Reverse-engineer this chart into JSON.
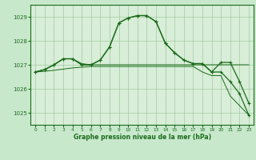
{
  "background_color": "#c8e8cc",
  "plot_bg_color": "#d8eed8",
  "grid_color": "#a0c8a0",
  "line_color": "#1a6b1a",
  "title": "Graphe pression niveau de la mer (hPa)",
  "xlim": [
    -0.5,
    23.5
  ],
  "ylim": [
    1024.5,
    1029.5
  ],
  "yticks": [
    1025,
    1026,
    1027,
    1028,
    1029
  ],
  "xticks": [
    0,
    1,
    2,
    3,
    4,
    5,
    6,
    7,
    8,
    9,
    10,
    11,
    12,
    13,
    14,
    15,
    16,
    17,
    18,
    19,
    20,
    21,
    22,
    23
  ],
  "series": [
    {
      "x": [
        0,
        1,
        2,
        3,
        4,
        5,
        6,
        7,
        8,
        9,
        10,
        11,
        12,
        13,
        14,
        15,
        16,
        17,
        18,
        19,
        20,
        21,
        22,
        23
      ],
      "y": [
        1026.7,
        1026.8,
        1027.0,
        1027.25,
        1027.25,
        1027.0,
        1027.0,
        1027.2,
        1027.75,
        1028.75,
        1028.95,
        1029.05,
        1029.05,
        1028.8,
        1027.9,
        1027.5,
        1027.2,
        1027.05,
        1027.05,
        1026.7,
        1026.7,
        1026.3,
        1025.8,
        1024.9
      ],
      "marker": true
    },
    {
      "x": [
        0,
        1,
        2,
        3,
        4,
        5,
        6,
        7,
        8,
        9,
        10,
        11,
        12,
        13,
        14,
        15,
        16,
        17,
        18,
        19,
        20,
        21,
        22,
        23
      ],
      "y": [
        1026.7,
        1026.8,
        1027.0,
        1027.25,
        1027.25,
        1027.05,
        1027.0,
        1027.0,
        1027.0,
        1027.0,
        1027.0,
        1027.0,
        1027.0,
        1027.0,
        1027.0,
        1027.0,
        1027.0,
        1027.0,
        1027.0,
        1027.0,
        1027.0,
        1027.0,
        1027.0,
        1027.0
      ],
      "marker": false
    },
    {
      "x": [
        0,
        1,
        2,
        3,
        4,
        5,
        6,
        7,
        8,
        9,
        10,
        11,
        12,
        13,
        14,
        15,
        16,
        17,
        18,
        19,
        20,
        21,
        22,
        23
      ],
      "y": [
        1026.7,
        1026.73,
        1026.77,
        1026.82,
        1026.87,
        1026.9,
        1026.93,
        1026.93,
        1026.93,
        1026.93,
        1026.93,
        1026.93,
        1026.93,
        1026.93,
        1026.93,
        1026.93,
        1026.93,
        1026.93,
        1026.7,
        1026.55,
        1026.55,
        1025.7,
        1025.3,
        1024.9
      ],
      "marker": false
    },
    {
      "x": [
        0,
        1,
        2,
        3,
        4,
        5,
        6,
        7,
        8,
        9,
        10,
        11,
        12,
        13,
        14,
        15,
        16,
        17,
        18,
        19,
        20,
        21,
        22,
        23
      ],
      "y": [
        1026.7,
        1026.8,
        1027.0,
        1027.25,
        1027.25,
        1027.0,
        1027.0,
        1027.2,
        1027.75,
        1028.75,
        1028.95,
        1029.05,
        1029.05,
        1028.8,
        1027.9,
        1027.5,
        1027.2,
        1027.05,
        1027.05,
        1026.7,
        1027.1,
        1027.1,
        1026.3,
        1025.4
      ],
      "marker": true
    }
  ]
}
